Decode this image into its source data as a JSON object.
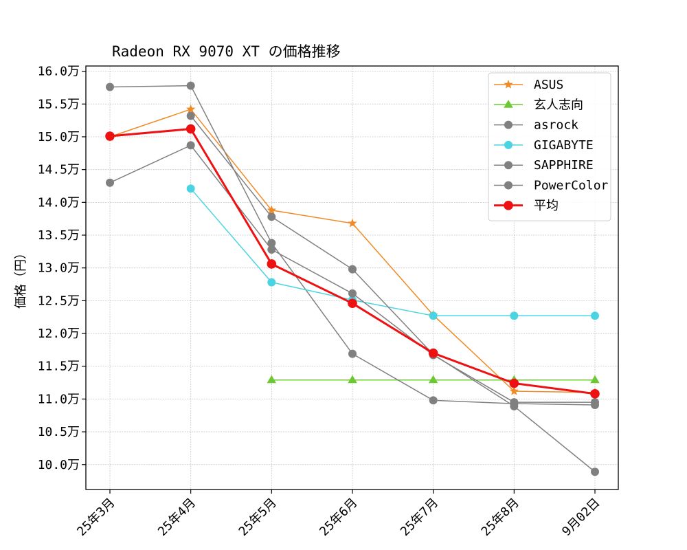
{
  "chart_data": {
    "type": "line",
    "title": "Radeon RX 9070 XT の価格推移",
    "xlabel": "",
    "ylabel": "価格（円）",
    "categories": [
      "25年3月",
      "25年4月",
      "25年5月",
      "25年6月",
      "25年7月",
      "25年8月",
      "9月02日"
    ],
    "ylim": [
      9.62,
      16.08
    ],
    "yticks": [
      10.0,
      10.5,
      11.0,
      11.5,
      12.0,
      12.5,
      13.0,
      13.5,
      14.0,
      14.5,
      15.0,
      15.5,
      16.0
    ],
    "ytick_labels": [
      "10.0万",
      "10.5万",
      "11.0万",
      "11.5万",
      "12.0万",
      "12.5万",
      "13.0万",
      "13.5万",
      "14.0万",
      "14.5万",
      "15.0万",
      "15.5万",
      "16.0万"
    ],
    "grid": true,
    "legend_position": "top-right",
    "series": [
      {
        "name": "ASUS",
        "color": "#f08a24",
        "marker": "star",
        "linewidth": 1.5,
        "values": [
          15.0,
          15.42,
          13.88,
          13.68,
          12.28,
          11.12,
          11.1
        ]
      },
      {
        "name": "玄人志向",
        "color": "#6cc832",
        "marker": "triangle",
        "linewidth": 1.5,
        "values": [
          null,
          null,
          11.29,
          11.29,
          11.29,
          11.29,
          11.29
        ]
      },
      {
        "name": "asrock",
        "color": "#808080",
        "marker": "circle",
        "linewidth": 1.5,
        "values": [
          15.76,
          15.78,
          13.38,
          11.69,
          10.98,
          10.93,
          10.91
        ]
      },
      {
        "name": "GIGABYTE",
        "color": "#4ad4e2",
        "marker": "circle",
        "linewidth": 1.5,
        "values": [
          null,
          14.21,
          12.78,
          12.51,
          12.27,
          12.27,
          12.27
        ]
      },
      {
        "name": "SAPPHIRE",
        "color": "#808080",
        "marker": "circle",
        "linewidth": 1.5,
        "values": [
          14.3,
          14.87,
          13.28,
          12.61,
          11.67,
          10.95,
          10.95
        ]
      },
      {
        "name": "PowerColor",
        "color": "#808080",
        "marker": "circle",
        "linewidth": 1.5,
        "values": [
          null,
          15.32,
          13.78,
          12.98,
          11.68,
          10.89,
          9.89
        ]
      },
      {
        "name": "平均",
        "color": "#ee1111",
        "marker": "circle",
        "linewidth": 3,
        "values": [
          15.01,
          15.12,
          13.06,
          12.46,
          11.7,
          11.24,
          11.08
        ]
      }
    ]
  }
}
